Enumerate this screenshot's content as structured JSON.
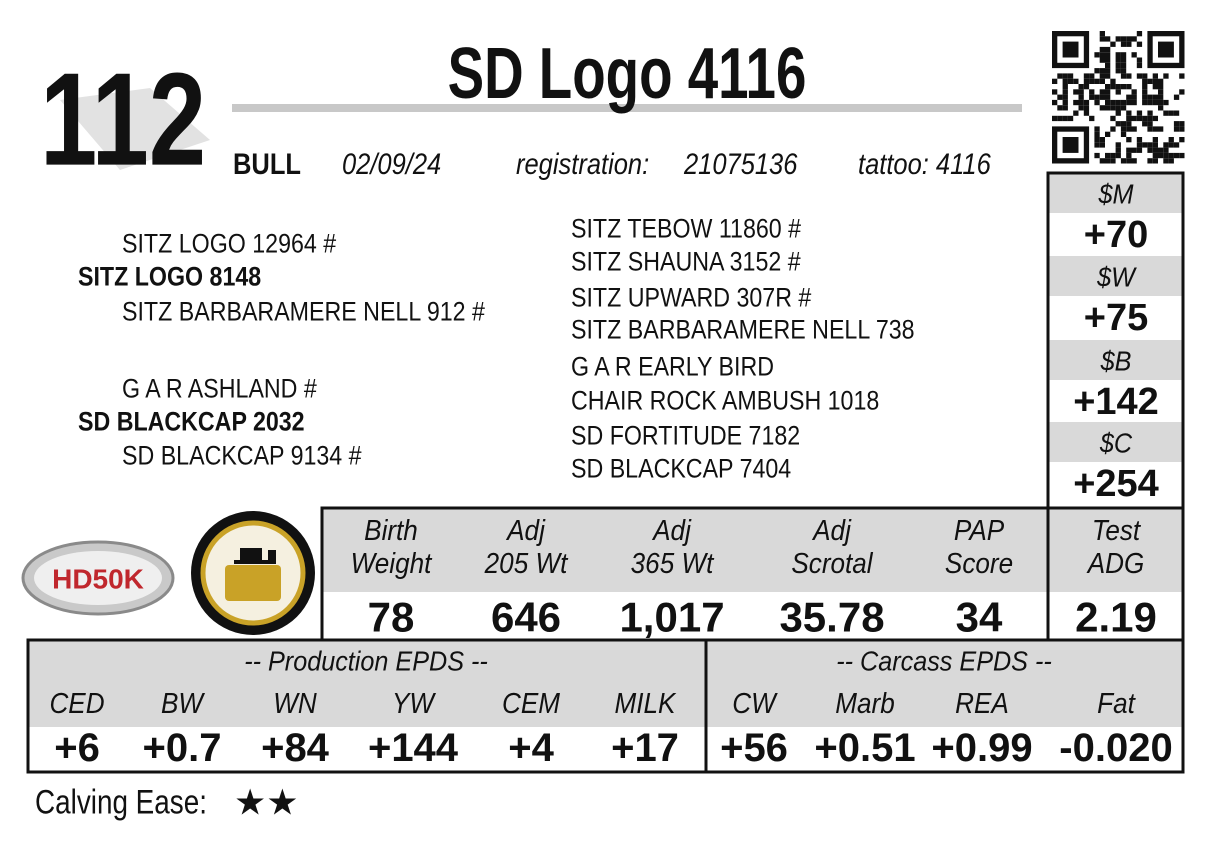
{
  "lot": "112",
  "header": {
    "title": "SD Logo 4116",
    "sex": "BULL",
    "birth_date": "02/09/24",
    "registration_label": "registration:",
    "registration": "21075136",
    "tattoo": "tattoo: 4116"
  },
  "pedigree": {
    "left": [
      {
        "text": "SITZ LOGO 12964 #",
        "bold": false
      },
      {
        "text": "SITZ LOGO 8148",
        "bold": true
      },
      {
        "text": "SITZ BARBARAMERE NELL 912 #",
        "bold": false
      },
      {
        "text": "G A R ASHLAND #",
        "bold": false
      },
      {
        "text": "SD BLACKCAP 2032",
        "bold": true
      },
      {
        "text": "SD BLACKCAP 9134 #",
        "bold": false
      }
    ],
    "right": [
      "SITZ TEBOW 11860 #",
      "SITZ SHAUNA 3152 #",
      "SITZ UPWARD 307R #",
      "SITZ BARBARAMERE NELL 738",
      "G A R EARLY BIRD",
      "CHAIR ROCK AMBUSH 1018",
      "SD FORTITUDE 7182",
      "SD BLACKCAP 7404"
    ]
  },
  "dollar_indexes": [
    {
      "label": "$M",
      "value": "+70"
    },
    {
      "label": "$W",
      "value": "+75"
    },
    {
      "label": "$B",
      "value": "+142"
    },
    {
      "label": "$C",
      "value": "+254"
    }
  ],
  "performance": [
    {
      "label": [
        "Birth",
        "Weight"
      ],
      "value": "78"
    },
    {
      "label": [
        "Adj",
        "205 Wt"
      ],
      "value": "646"
    },
    {
      "label": [
        "Adj",
        "365 Wt"
      ],
      "value": "1,017"
    },
    {
      "label": [
        "Adj",
        "Scrotal"
      ],
      "value": "35.78"
    },
    {
      "label": [
        "PAP",
        "Score"
      ],
      "value": "34"
    },
    {
      "label": [
        "Test",
        "ADG"
      ],
      "value": "2.19"
    }
  ],
  "epds": {
    "production": {
      "title": "-- Production EPDS --",
      "columns": [
        {
          "label": "CED",
          "value": "+6"
        },
        {
          "label": "BW",
          "value": "+0.7"
        },
        {
          "label": "WN",
          "value": "+84"
        },
        {
          "label": "YW",
          "value": "+144"
        },
        {
          "label": "CEM",
          "value": "+4"
        },
        {
          "label": "MILK",
          "value": "+17"
        }
      ]
    },
    "carcass": {
      "title": "-- Carcass EPDS --",
      "columns": [
        {
          "label": "CW",
          "value": "+56"
        },
        {
          "label": "Marb",
          "value": "+0.51"
        },
        {
          "label": "REA",
          "value": "+0.99"
        },
        {
          "label": "Fat",
          "value": "-0.020"
        }
      ]
    }
  },
  "logos": {
    "hd50k": "HD50K"
  },
  "calving_ease": {
    "label": "Calving Ease:",
    "stars": "★★"
  }
}
